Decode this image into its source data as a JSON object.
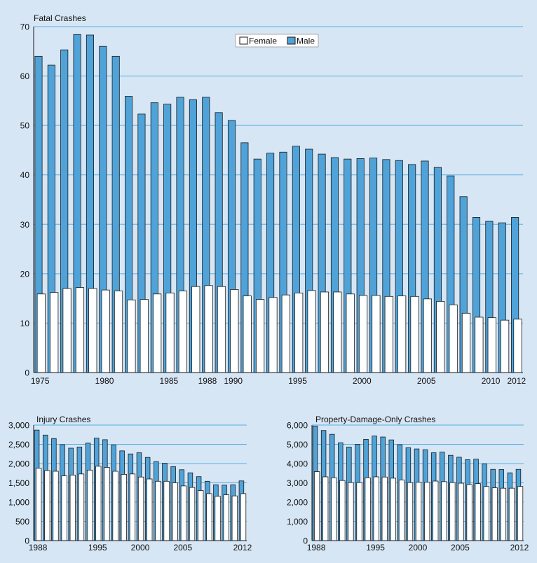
{
  "colors": {
    "background": "#d6e6f5",
    "male": "#4fa3d9",
    "female": "#ffffff",
    "outline": "#1a1a1a",
    "grid": "#5aaee0",
    "text": "#111111"
  },
  "chart_data": [
    {
      "type": "bar",
      "stacked": false,
      "overlapped": true,
      "title": "Fatal Crashes",
      "legend": {
        "placement": "top-center",
        "entries": [
          "Female",
          "Male"
        ]
      },
      "grid": true,
      "ylim": [
        0,
        70
      ],
      "y_ticks": [
        0,
        10,
        20,
        30,
        40,
        50,
        60,
        70
      ],
      "y_tick_labels": [
        "0",
        "10",
        "20",
        "30",
        "40",
        "50",
        "60",
        "70"
      ],
      "x": [
        1975,
        1976,
        1977,
        1978,
        1979,
        1980,
        1981,
        1982,
        1983,
        1984,
        1985,
        1986,
        1987,
        1988,
        1989,
        1990,
        1991,
        1992,
        1993,
        1994,
        1995,
        1996,
        1997,
        1998,
        1999,
        2000,
        2001,
        2002,
        2003,
        2004,
        2005,
        2006,
        2007,
        2008,
        2009,
        2010,
        2011,
        2012
      ],
      "x_tick_labels": [
        "1975",
        "1980",
        "1985",
        "1988",
        "1990",
        "1995",
        "2000",
        "2005",
        "2010",
        "2012"
      ],
      "series": [
        {
          "name": "Male",
          "values": [
            64,
            62.2,
            65.3,
            68.4,
            68.3,
            66,
            64,
            55.9,
            52.3,
            54.6,
            54.3,
            55.7,
            55.2,
            55.7,
            52.6,
            51,
            46.5,
            43.2,
            44.4,
            44.6,
            45.8,
            45.2,
            44.2,
            43.5,
            43.2,
            43.3,
            43.4,
            43.1,
            42.9,
            42.1,
            42.8,
            41.5,
            39.8,
            35.6,
            31.4,
            30.6,
            30.3,
            31.4
          ]
        },
        {
          "name": "Female",
          "values": [
            15.9,
            16.2,
            17,
            17.2,
            17,
            16.7,
            16.5,
            14.7,
            14.8,
            15.9,
            16.1,
            16.5,
            17.4,
            17.6,
            17.4,
            16.8,
            15.5,
            14.8,
            15.2,
            15.7,
            16.1,
            16.6,
            16.3,
            16.3,
            15.9,
            15.6,
            15.6,
            15.4,
            15.5,
            15.4,
            14.9,
            14.4,
            13.7,
            12,
            11.2,
            11.1,
            10.6,
            10.8
          ]
        }
      ]
    },
    {
      "type": "bar",
      "stacked": false,
      "overlapped": true,
      "title": "Injury Crashes",
      "grid": true,
      "ylim": [
        0,
        3000
      ],
      "y_ticks": [
        0,
        500,
        1000,
        1500,
        2000,
        2500,
        3000
      ],
      "y_tick_labels": [
        "0",
        "500",
        "1,000",
        "1,500",
        "2,000",
        "2,500",
        "3,000"
      ],
      "x": [
        1988,
        1989,
        1990,
        1991,
        1992,
        1993,
        1994,
        1995,
        1996,
        1997,
        1998,
        1999,
        2000,
        2001,
        2002,
        2003,
        2004,
        2005,
        2006,
        2007,
        2008,
        2009,
        2010,
        2011,
        2012
      ],
      "x_tick_labels": [
        "1988",
        "1995",
        "2000",
        "2005",
        "2012"
      ],
      "series": [
        {
          "name": "Male",
          "values": [
            2870,
            2740,
            2650,
            2490,
            2400,
            2430,
            2530,
            2660,
            2620,
            2480,
            2330,
            2250,
            2280,
            2160,
            2050,
            2010,
            1920,
            1840,
            1760,
            1660,
            1540,
            1450,
            1440,
            1450,
            1550
          ]
        },
        {
          "name": "Female",
          "values": [
            1880,
            1820,
            1800,
            1680,
            1700,
            1730,
            1830,
            1930,
            1900,
            1800,
            1720,
            1730,
            1650,
            1600,
            1540,
            1540,
            1500,
            1420,
            1380,
            1300,
            1220,
            1150,
            1190,
            1160,
            1220
          ]
        }
      ]
    },
    {
      "type": "bar",
      "stacked": false,
      "overlapped": true,
      "title": "Property-Damage-Only Crashes",
      "grid": true,
      "ylim": [
        0,
        6000
      ],
      "y_ticks": [
        0,
        1000,
        2000,
        3000,
        4000,
        5000,
        6000
      ],
      "y_tick_labels": [
        "0",
        "1,000",
        "2,000",
        "3,000",
        "4,000",
        "5,000",
        "6,000"
      ],
      "x": [
        1988,
        1989,
        1990,
        1991,
        1992,
        1993,
        1994,
        1995,
        1996,
        1997,
        1998,
        1999,
        2000,
        2001,
        2002,
        2003,
        2004,
        2005,
        2006,
        2007,
        2008,
        2009,
        2010,
        2011,
        2012
      ],
      "x_tick_labels": [
        "1988",
        "1995",
        "2000",
        "2005",
        "2012"
      ],
      "series": [
        {
          "name": "Male",
          "values": [
            5950,
            5720,
            5520,
            5080,
            4860,
            5000,
            5260,
            5430,
            5380,
            5230,
            4980,
            4820,
            4760,
            4720,
            4560,
            4600,
            4430,
            4330,
            4200,
            4230,
            3980,
            3700,
            3690,
            3520,
            3700
          ]
        },
        {
          "name": "Female",
          "values": [
            3580,
            3310,
            3260,
            3120,
            3010,
            3010,
            3260,
            3310,
            3300,
            3240,
            3150,
            3010,
            3030,
            3030,
            3090,
            3060,
            3010,
            2980,
            2910,
            2960,
            2810,
            2740,
            2720,
            2720,
            2810
          ]
        }
      ]
    }
  ]
}
